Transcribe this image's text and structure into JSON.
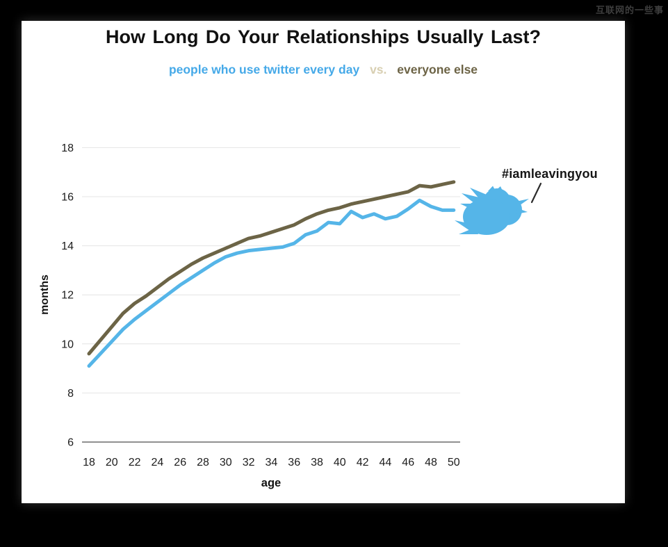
{
  "watermark": {
    "text": "互联网的一些事"
  },
  "header": {
    "title": "How Long Do Your Relationships Usually Last?",
    "subtitle_twitter": "people who use twitter every day",
    "subtitle_vs": "vs.",
    "subtitle_everyone": "everyone else"
  },
  "annotation": {
    "hashtag": "#iamleavingyou"
  },
  "colors": {
    "twitter_blue": "#55b5e8",
    "everyone_olive": "#6c6446",
    "subtitle_blue": "#45a9e8",
    "subtitle_vs_tan": "#d8cfb2",
    "grid": "#e4e4e4",
    "axis": "#6b6b6b",
    "background": "#000000",
    "panel": "#ffffff"
  },
  "chart_data": {
    "type": "line",
    "title": "How Long Do Your Relationships Usually Last?",
    "subtitle": "people who use twitter every day vs. everyone else",
    "xlabel": "age",
    "ylabel": "months",
    "xlim": [
      18,
      50
    ],
    "ylim": [
      6,
      18
    ],
    "grid": "horizontal",
    "legend_position": "subtitle",
    "x_ticks": [
      18,
      20,
      22,
      24,
      26,
      28,
      30,
      32,
      34,
      36,
      38,
      40,
      42,
      44,
      46,
      48,
      50
    ],
    "y_ticks": [
      6,
      8,
      10,
      12,
      14,
      16,
      18
    ],
    "x": [
      18,
      19,
      20,
      21,
      22,
      23,
      24,
      25,
      26,
      27,
      28,
      29,
      30,
      31,
      32,
      33,
      34,
      35,
      36,
      37,
      38,
      39,
      40,
      41,
      42,
      43,
      44,
      45,
      46,
      47,
      48,
      49,
      50
    ],
    "series": [
      {
        "name": "everyone else",
        "color": "#6c6446",
        "values": [
          9.6,
          10.15,
          10.7,
          11.25,
          11.65,
          11.95,
          12.3,
          12.65,
          12.95,
          13.25,
          13.5,
          13.7,
          13.9,
          14.1,
          14.3,
          14.4,
          14.55,
          14.7,
          14.85,
          15.1,
          15.3,
          15.45,
          15.55,
          15.7,
          15.8,
          15.9,
          16.0,
          16.1,
          16.2,
          16.45,
          16.4,
          16.5,
          16.6
        ]
      },
      {
        "name": "people who use twitter every day",
        "color": "#55b5e8",
        "values": [
          9.1,
          9.6,
          10.1,
          10.6,
          11.0,
          11.35,
          11.7,
          12.05,
          12.4,
          12.7,
          13.0,
          13.3,
          13.55,
          13.7,
          13.8,
          13.85,
          13.9,
          13.95,
          14.1,
          14.45,
          14.6,
          14.95,
          14.9,
          15.4,
          15.15,
          15.3,
          15.1,
          15.2,
          15.5,
          15.85,
          15.6,
          15.45,
          15.45
        ]
      }
    ],
    "annotations": [
      {
        "text": "#iamleavingyou",
        "x": 50,
        "y": 16.3,
        "note": "points at twitter bird at end of blue line"
      }
    ]
  }
}
